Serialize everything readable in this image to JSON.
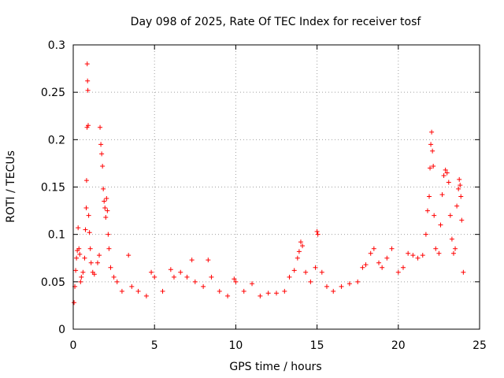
{
  "chart_data": {
    "type": "scatter",
    "title": "Day 098 of 2025, Rate Of TEC Index for receiver tosf",
    "xlabel": "GPS time / hours",
    "ylabel": "ROTI / TECUs",
    "xlim": [
      0,
      25
    ],
    "ylim": [
      0,
      0.3
    ],
    "xticks": [
      0,
      5,
      10,
      15,
      20,
      25
    ],
    "yticks": [
      0,
      0.05,
      0.1,
      0.15,
      0.2,
      0.25,
      0.3
    ],
    "xtick_labels": [
      "0",
      "5",
      "10",
      "15",
      "20",
      "25"
    ],
    "ytick_labels": [
      "0",
      "0.05",
      "0.1",
      "0.15",
      "0.2",
      "0.25",
      "0.3"
    ],
    "grid": true,
    "marker": "+",
    "color": "#ff0000",
    "series": [
      {
        "name": "ROTI",
        "points": [
          [
            0.05,
            0.028
          ],
          [
            0.1,
            0.045
          ],
          [
            0.15,
            0.062
          ],
          [
            0.2,
            0.075
          ],
          [
            0.25,
            0.083
          ],
          [
            0.3,
            0.107
          ],
          [
            0.35,
            0.085
          ],
          [
            0.4,
            0.079
          ],
          [
            0.45,
            0.05
          ],
          [
            0.5,
            0.055
          ],
          [
            0.6,
            0.06
          ],
          [
            0.7,
            0.075
          ],
          [
            0.75,
            0.105
          ],
          [
            0.8,
            0.128
          ],
          [
            0.82,
            0.157
          ],
          [
            0.85,
            0.213
          ],
          [
            0.86,
            0.28
          ],
          [
            0.88,
            0.262
          ],
          [
            0.9,
            0.252
          ],
          [
            0.92,
            0.215
          ],
          [
            0.95,
            0.12
          ],
          [
            1.0,
            0.102
          ],
          [
            1.05,
            0.085
          ],
          [
            1.1,
            0.07
          ],
          [
            1.2,
            0.06
          ],
          [
            1.3,
            0.058
          ],
          [
            1.5,
            0.07
          ],
          [
            1.6,
            0.078
          ],
          [
            1.65,
            0.213
          ],
          [
            1.7,
            0.195
          ],
          [
            1.75,
            0.185
          ],
          [
            1.8,
            0.172
          ],
          [
            1.85,
            0.148
          ],
          [
            1.9,
            0.135
          ],
          [
            1.95,
            0.128
          ],
          [
            2.0,
            0.118
          ],
          [
            2.05,
            0.138
          ],
          [
            2.1,
            0.125
          ],
          [
            2.15,
            0.1
          ],
          [
            2.2,
            0.085
          ],
          [
            2.3,
            0.065
          ],
          [
            2.5,
            0.055
          ],
          [
            2.7,
            0.05
          ],
          [
            3.0,
            0.04
          ],
          [
            3.4,
            0.078
          ],
          [
            3.6,
            0.045
          ],
          [
            4.0,
            0.04
          ],
          [
            4.5,
            0.035
          ],
          [
            4.8,
            0.06
          ],
          [
            5.0,
            0.055
          ],
          [
            5.5,
            0.04
          ],
          [
            6.0,
            0.063
          ],
          [
            6.2,
            0.055
          ],
          [
            6.6,
            0.06
          ],
          [
            7.0,
            0.055
          ],
          [
            7.3,
            0.073
          ],
          [
            7.5,
            0.05
          ],
          [
            8.0,
            0.045
          ],
          [
            8.3,
            0.073
          ],
          [
            8.5,
            0.055
          ],
          [
            9.0,
            0.04
          ],
          [
            9.5,
            0.035
          ],
          [
            9.9,
            0.053
          ],
          [
            10.0,
            0.05
          ],
          [
            10.5,
            0.04
          ],
          [
            11.0,
            0.048
          ],
          [
            11.5,
            0.035
          ],
          [
            12.0,
            0.038
          ],
          [
            12.5,
            0.038
          ],
          [
            13.0,
            0.04
          ],
          [
            13.3,
            0.055
          ],
          [
            13.6,
            0.062
          ],
          [
            13.8,
            0.075
          ],
          [
            13.9,
            0.082
          ],
          [
            14.0,
            0.092
          ],
          [
            14.1,
            0.088
          ],
          [
            14.3,
            0.06
          ],
          [
            14.6,
            0.05
          ],
          [
            14.9,
            0.065
          ],
          [
            15.0,
            0.103
          ],
          [
            15.05,
            0.1
          ],
          [
            15.3,
            0.06
          ],
          [
            15.6,
            0.045
          ],
          [
            16.0,
            0.04
          ],
          [
            16.5,
            0.045
          ],
          [
            17.0,
            0.048
          ],
          [
            17.5,
            0.05
          ],
          [
            17.8,
            0.065
          ],
          [
            18.0,
            0.068
          ],
          [
            18.3,
            0.08
          ],
          [
            18.5,
            0.085
          ],
          [
            18.8,
            0.07
          ],
          [
            19.0,
            0.065
          ],
          [
            19.3,
            0.075
          ],
          [
            19.6,
            0.085
          ],
          [
            20.0,
            0.06
          ],
          [
            20.3,
            0.065
          ],
          [
            20.6,
            0.08
          ],
          [
            20.9,
            0.078
          ],
          [
            21.2,
            0.075
          ],
          [
            21.5,
            0.078
          ],
          [
            21.7,
            0.1
          ],
          [
            21.8,
            0.125
          ],
          [
            21.9,
            0.14
          ],
          [
            21.95,
            0.17
          ],
          [
            22.0,
            0.195
          ],
          [
            22.05,
            0.208
          ],
          [
            22.1,
            0.188
          ],
          [
            22.15,
            0.172
          ],
          [
            22.2,
            0.12
          ],
          [
            22.3,
            0.085
          ],
          [
            22.5,
            0.08
          ],
          [
            22.6,
            0.11
          ],
          [
            22.7,
            0.142
          ],
          [
            22.8,
            0.162
          ],
          [
            22.9,
            0.168
          ],
          [
            23.0,
            0.165
          ],
          [
            23.1,
            0.155
          ],
          [
            23.2,
            0.12
          ],
          [
            23.3,
            0.095
          ],
          [
            23.4,
            0.08
          ],
          [
            23.5,
            0.085
          ],
          [
            23.6,
            0.13
          ],
          [
            23.7,
            0.148
          ],
          [
            23.75,
            0.158
          ],
          [
            23.8,
            0.152
          ],
          [
            23.85,
            0.14
          ],
          [
            23.9,
            0.115
          ],
          [
            24.0,
            0.06
          ]
        ]
      }
    ]
  }
}
